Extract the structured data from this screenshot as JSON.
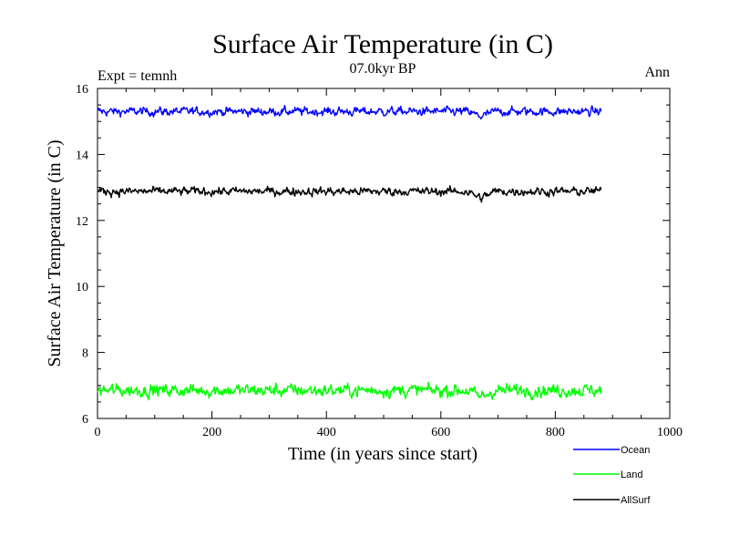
{
  "chart_data": {
    "type": "line",
    "title": "Surface Air Temperature (in C)",
    "subtitle": "07.0kyr BP",
    "left_annotation": "Expt = temnh",
    "right_annotation": "Ann",
    "xlabel": "Time (in years since start)",
    "ylabel": "Surface Air Temperature (in C)",
    "xlim": [
      0,
      1000
    ],
    "ylim": [
      6,
      16
    ],
    "xticks": [
      0,
      200,
      400,
      600,
      800,
      1000
    ],
    "yticks": [
      6,
      8,
      10,
      12,
      14,
      16
    ],
    "xtick_labels": [
      "0",
      "200",
      "400",
      "600",
      "800",
      "1000"
    ],
    "ytick_labels": [
      "6",
      "8",
      "10",
      "12",
      "14",
      "16"
    ],
    "x_range": [
      0,
      880
    ],
    "grid": false,
    "legend_position": "bottom-right, outside plot",
    "series": [
      {
        "name": "Ocean",
        "color": "#0000ff",
        "mean": 15.3,
        "amplitude": 0.12,
        "dips": [
          {
            "x": 670,
            "depth": 0.15
          }
        ]
      },
      {
        "name": "Land",
        "color": "#00ff00",
        "mean": 6.85,
        "amplitude": 0.18,
        "dips": [
          {
            "x": 670,
            "depth": 0.2
          }
        ]
      },
      {
        "name": "AllSurf",
        "color": "#000000",
        "mean": 12.88,
        "amplitude": 0.12,
        "dips": [
          {
            "x": 670,
            "depth": 0.2
          }
        ]
      }
    ]
  }
}
